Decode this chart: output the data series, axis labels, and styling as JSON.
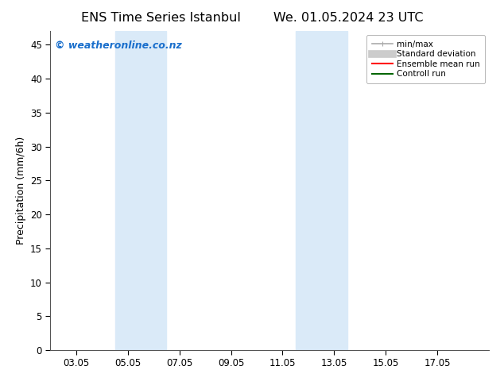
{
  "title_left": "ENS Time Series Istanbul",
  "title_right": "We. 01.05.2024 23 UTC",
  "ylabel": "Precipitation (mm/6h)",
  "background_color": "#ffffff",
  "plot_bg_color": "#ffffff",
  "ylim": [
    0,
    47
  ],
  "yticks": [
    0,
    5,
    10,
    15,
    20,
    25,
    30,
    35,
    40,
    45
  ],
  "xtick_labels": [
    "03.05",
    "05.05",
    "07.05",
    "09.05",
    "11.05",
    "13.05",
    "15.05",
    "17.05"
  ],
  "xtick_positions": [
    2,
    4,
    6,
    8,
    10,
    12,
    14,
    16
  ],
  "xmin": 1.0,
  "xmax": 18.0,
  "shaded_bands": [
    {
      "x_start": 3.5,
      "x_end": 5.5,
      "color": "#daeaf8"
    },
    {
      "x_start": 10.5,
      "x_end": 12.5,
      "color": "#daeaf8"
    }
  ],
  "copyright_text": "© weatheronline.co.nz",
  "copyright_color": "#1a6fcc",
  "legend_items": [
    {
      "label": "min/max",
      "color": "#aaaaaa",
      "linestyle": "-",
      "linewidth": 1.2,
      "type": "minmax"
    },
    {
      "label": "Standard deviation",
      "color": "#cccccc",
      "linestyle": "-",
      "linewidth": 7,
      "type": "band"
    },
    {
      "label": "Ensemble mean run",
      "color": "#ff0000",
      "linestyle": "-",
      "linewidth": 1.5,
      "type": "line"
    },
    {
      "label": "Controll run",
      "color": "#006600",
      "linestyle": "-",
      "linewidth": 1.5,
      "type": "line"
    }
  ],
  "title_fontsize": 11.5,
  "axis_label_fontsize": 9,
  "tick_fontsize": 8.5,
  "copyright_fontsize": 9,
  "legend_fontsize": 7.5
}
